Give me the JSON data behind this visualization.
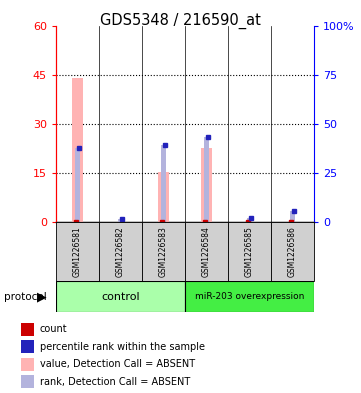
{
  "title": "GDS5348 / 216590_at",
  "samples": [
    "GSM1226581",
    "GSM1226582",
    "GSM1226583",
    "GSM1226584",
    "GSM1226585",
    "GSM1226586"
  ],
  "pink_values": [
    44.0,
    0.0,
    15.2,
    22.5,
    0.0,
    0.0
  ],
  "blue_rank_pct": [
    37.5,
    1.3,
    39.2,
    43.3,
    2.0,
    5.8
  ],
  "red_count_present": [
    true,
    false,
    true,
    true,
    true,
    true
  ],
  "blue_rank_present": [
    true,
    true,
    true,
    true,
    true,
    true
  ],
  "left_ylim": [
    0,
    60
  ],
  "right_ylim": [
    0,
    100
  ],
  "left_yticks": [
    0,
    15,
    30,
    45,
    60
  ],
  "right_yticks": [
    0,
    25,
    50,
    75,
    100
  ],
  "left_yticklabels": [
    "0",
    "15",
    "30",
    "45",
    "60"
  ],
  "right_yticklabels": [
    "0",
    "25",
    "50",
    "75",
    "100%"
  ],
  "dotted_lines": [
    15,
    30,
    45
  ],
  "pink_color": "#ffb3b3",
  "light_blue_color": "#b3b3dd",
  "red_color": "#cc0000",
  "blue_color": "#2222bb",
  "control_color": "#aaffaa",
  "mir_color": "#44ee44",
  "sample_bg": "#cccccc",
  "legend_labels": [
    "count",
    "percentile rank within the sample",
    "value, Detection Call = ABSENT",
    "rank, Detection Call = ABSENT"
  ],
  "legend_colors": [
    "#cc0000",
    "#2222bb",
    "#ffb3b3",
    "#b3b3dd"
  ]
}
